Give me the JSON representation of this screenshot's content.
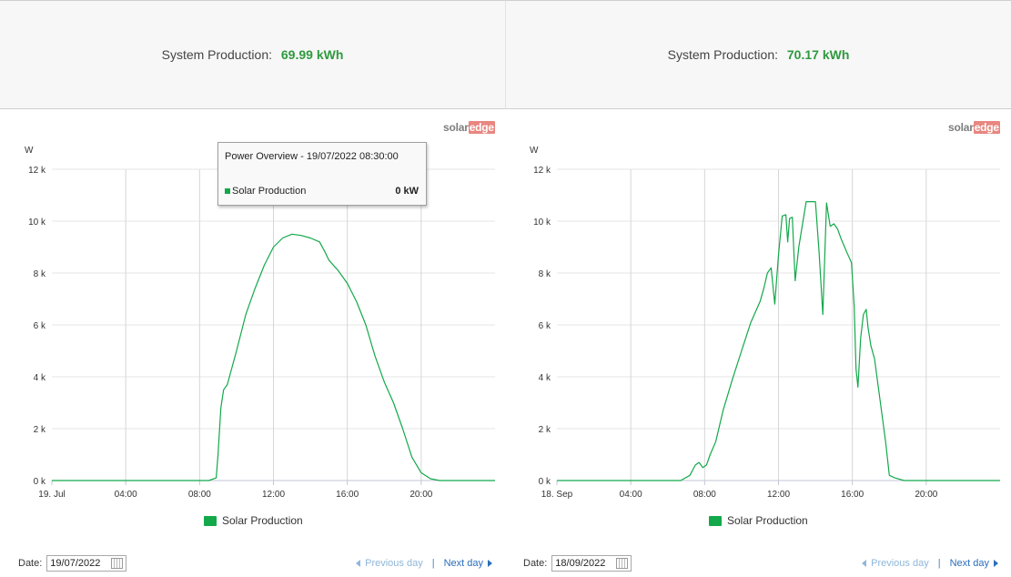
{
  "panels": [
    {
      "summary": {
        "label": "System Production:",
        "value": "69.99 kWh"
      },
      "logo": {
        "part1": "solar",
        "part2": "edge"
      },
      "legend": {
        "label": "Solar Production",
        "color": "#13a84a"
      },
      "footer": {
        "date_label": "Date:",
        "date_value": "19/07/2022",
        "prev_label": "Previous day",
        "separator": "|",
        "next_label": "Next day"
      },
      "tooltip": {
        "title": "Power Overview - 19/07/2022 08:30:00",
        "series": "Solar Production",
        "value": "0 kW"
      }
    },
    {
      "summary": {
        "label": "System Production:",
        "value": "70.17 kWh"
      },
      "logo": {
        "part1": "solar",
        "part2": "edge"
      },
      "legend": {
        "label": "Solar Production",
        "color": "#13a84a"
      },
      "footer": {
        "date_label": "Date:",
        "date_value": "18/09/2022",
        "prev_label": "Previous day",
        "separator": "|",
        "next_label": "Next day"
      }
    }
  ],
  "chart_data": [
    {
      "type": "line",
      "ylabel": "W",
      "ylim": [
        0,
        12000
      ],
      "xlim": [
        0,
        24
      ],
      "y_ticks": [
        0,
        2000,
        4000,
        6000,
        8000,
        10000,
        12000
      ],
      "y_tick_labels": [
        "0 k",
        "2 k",
        "4 k",
        "6 k",
        "8 k",
        "10 k",
        "12 k"
      ],
      "x_ticks": [
        0,
        4,
        8,
        12,
        16,
        20
      ],
      "x_tick_labels": [
        "19. Jul",
        "04:00",
        "08:00",
        "12:00",
        "16:00",
        "20:00"
      ],
      "grid": true,
      "legend": "bottom-center",
      "series": [
        {
          "name": "Solar Production",
          "color": "#13a84a",
          "x": [
            0,
            8.5,
            8.9,
            9.0,
            9.15,
            9.3,
            9.5,
            10.0,
            10.5,
            11.0,
            11.5,
            12.0,
            12.5,
            13.0,
            13.5,
            14.0,
            14.5,
            14.8,
            15.0,
            15.5,
            16.0,
            16.5,
            17.0,
            17.5,
            18.0,
            18.5,
            19.0,
            19.5,
            20.0,
            20.5,
            21.0,
            24
          ],
          "y": [
            0,
            0,
            100,
            1000,
            2800,
            3500,
            3700,
            5000,
            6400,
            7400,
            8300,
            9000,
            9350,
            9500,
            9450,
            9350,
            9200,
            8800,
            8500,
            8100,
            7600,
            6900,
            6000,
            4800,
            3800,
            3000,
            2000,
            900,
            300,
            70,
            0,
            0
          ]
        }
      ]
    },
    {
      "type": "line",
      "ylabel": "W",
      "ylim": [
        0,
        12000
      ],
      "xlim": [
        0,
        24
      ],
      "y_ticks": [
        0,
        2000,
        4000,
        6000,
        8000,
        10000,
        12000
      ],
      "y_tick_labels": [
        "0 k",
        "2 k",
        "4 k",
        "6 k",
        "8 k",
        "10 k",
        "12 k"
      ],
      "x_ticks": [
        0,
        4,
        8,
        12,
        16,
        20
      ],
      "x_tick_labels": [
        "18. Sep",
        "04:00",
        "08:00",
        "12:00",
        "16:00",
        "20:00"
      ],
      "grid": true,
      "legend": "bottom-center",
      "series": [
        {
          "name": "Solar Production",
          "color": "#13a84a",
          "x": [
            0,
            6.7,
            7.2,
            7.5,
            7.7,
            7.9,
            8.1,
            8.3,
            8.6,
            9.0,
            9.5,
            10.0,
            10.5,
            11.0,
            11.2,
            11.4,
            11.6,
            11.8,
            12.0,
            12.2,
            12.4,
            12.5,
            12.6,
            12.75,
            12.9,
            13.1,
            13.5,
            13.8,
            14.0,
            14.2,
            14.4,
            14.6,
            14.8,
            15.0,
            15.2,
            15.4,
            15.7,
            15.95,
            16.1,
            16.2,
            16.3,
            16.45,
            16.6,
            16.75,
            16.85,
            17.0,
            17.2,
            17.5,
            17.8,
            18.0,
            18.3,
            18.8,
            19.3,
            19.6,
            24
          ],
          "y": [
            0,
            0,
            200,
            600,
            700,
            500,
            600,
            1000,
            1500,
            2700,
            3900,
            5000,
            6100,
            6900,
            7400,
            8000,
            8200,
            6800,
            8700,
            10200,
            10250,
            9200,
            10100,
            10150,
            7700,
            9000,
            10750,
            10750,
            10750,
            8800,
            6400,
            10700,
            9800,
            9900,
            9700,
            9300,
            8800,
            8400,
            6700,
            4300,
            3600,
            5500,
            6400,
            6600,
            5900,
            5200,
            4700,
            3100,
            1500,
            200,
            100,
            0,
            0,
            0,
            0
          ]
        }
      ]
    }
  ]
}
